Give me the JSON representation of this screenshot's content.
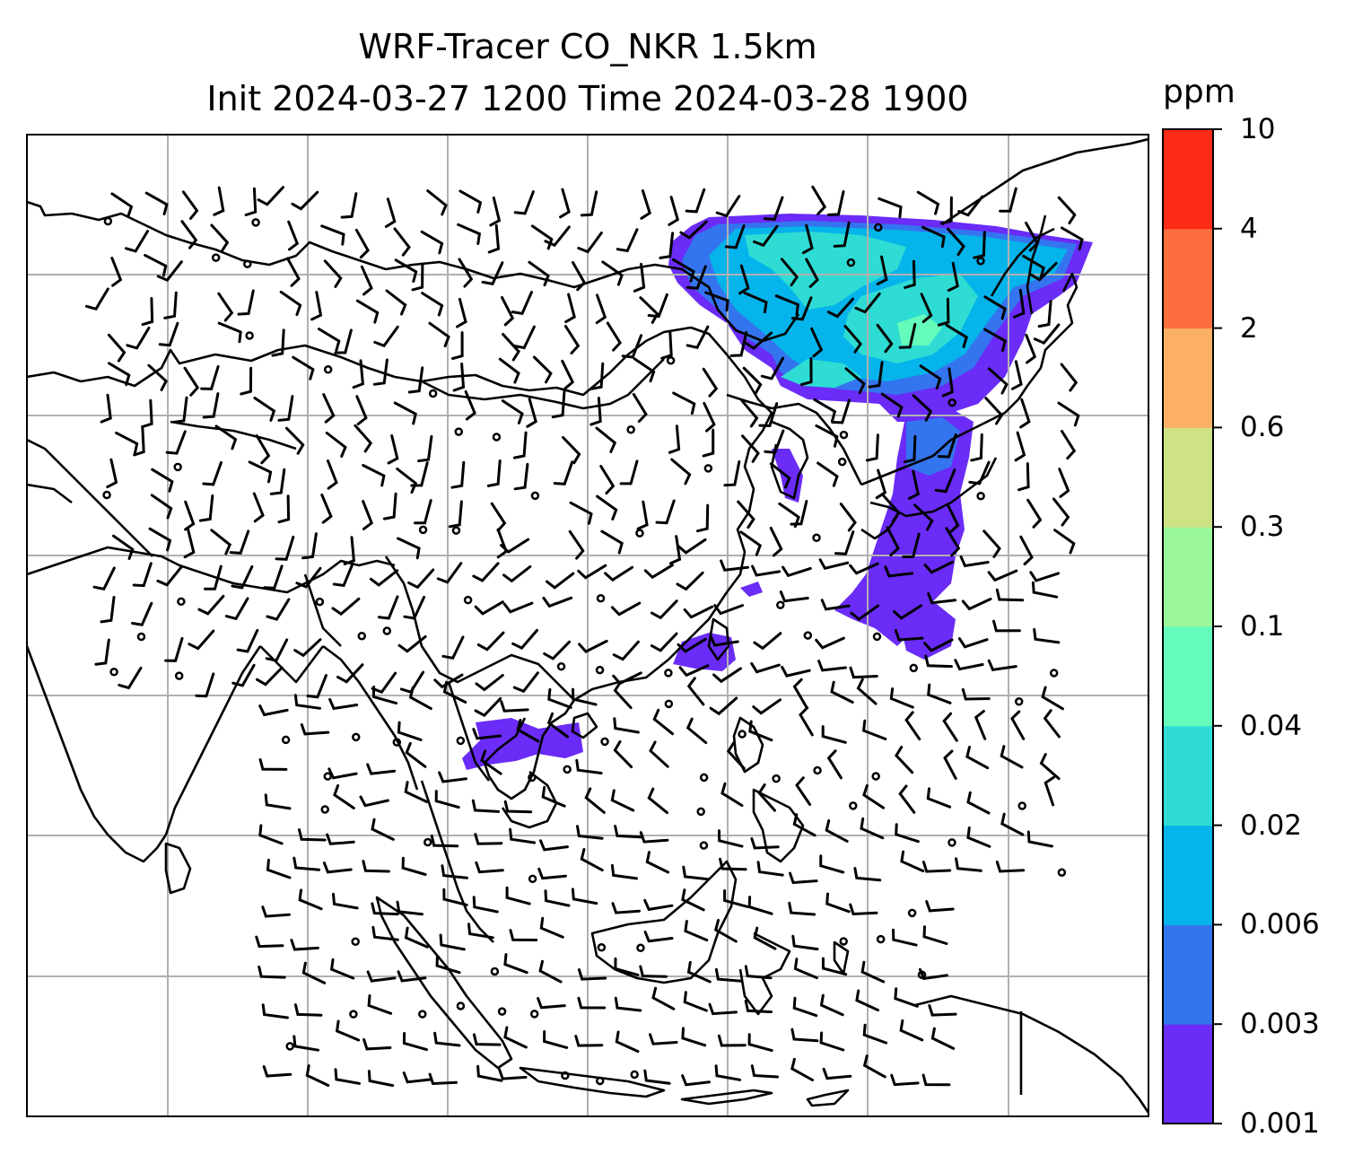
{
  "title": {
    "line1": "WRF-Tracer CO_NKR 1.5km",
    "line2": "Init 2024-03-27 1200 Time 2024-03-28 1900"
  },
  "colorbar": {
    "unit": "ppm",
    "levels": [
      "0.001",
      "0.003",
      "0.006",
      "0.02",
      "0.04",
      "0.1",
      "0.3",
      "0.6",
      "2",
      "4",
      "10"
    ],
    "colors": [
      "#6a2cf6",
      "#3475ef",
      "#04b4ea",
      "#2fdcd4",
      "#64fbbb",
      "#9bf79b",
      "#cee286",
      "#fcb065",
      "#fd6e3f",
      "#fe2b17"
    ]
  },
  "map": {
    "type": "filled contour with wind barbs",
    "gridlines": true,
    "coastline_color": "#000000",
    "gridline_color": "#b0b0b0"
  }
}
